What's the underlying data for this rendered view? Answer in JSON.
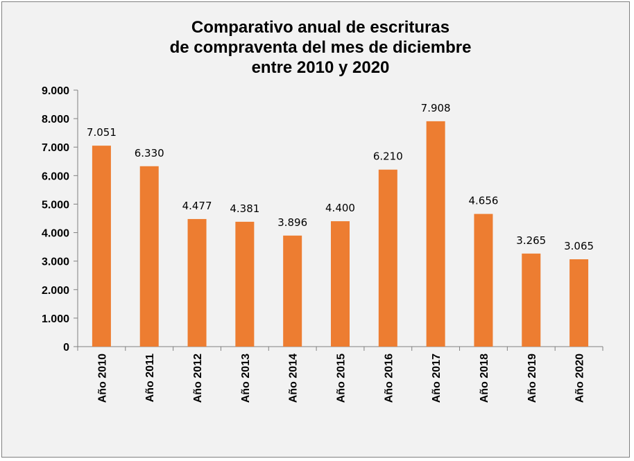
{
  "chart_data": {
    "type": "bar",
    "title_lines": [
      "Comparativo anual de escrituras",
      "de compraventa del mes de diciembre",
      "entre 2010 y 2020"
    ],
    "xlabel": "",
    "ylabel": "",
    "categories": [
      "Año 2010",
      "Año 2011",
      "Año 2012",
      "Año 2013",
      "Año 2014",
      "Año 2015",
      "Año 2016",
      "Año 2017",
      "Año 2018",
      "Año 2019",
      "Año 2020"
    ],
    "values": [
      7051,
      6330,
      4477,
      4381,
      3896,
      4400,
      6210,
      7908,
      4656,
      3265,
      3065
    ],
    "value_labels": [
      "7.051",
      "6.330",
      "4.477",
      "4.381",
      "3.896",
      "4.400",
      "6.210",
      "7.908",
      "4.656",
      "3.265",
      "3.065"
    ],
    "ylim": [
      0,
      9000
    ],
    "yticks": [
      0,
      1000,
      2000,
      3000,
      4000,
      5000,
      6000,
      7000,
      8000,
      9000
    ],
    "ytick_labels": [
      "0",
      "1.000",
      "2.000",
      "3.000",
      "4.000",
      "5.000",
      "6.000",
      "7.000",
      "8.000",
      "9.000"
    ],
    "grid": false,
    "legend": "none",
    "colors": {
      "bar": "#ed7d31",
      "background": "#f2f2f2",
      "axis": "#808080",
      "text": "#000000"
    }
  }
}
